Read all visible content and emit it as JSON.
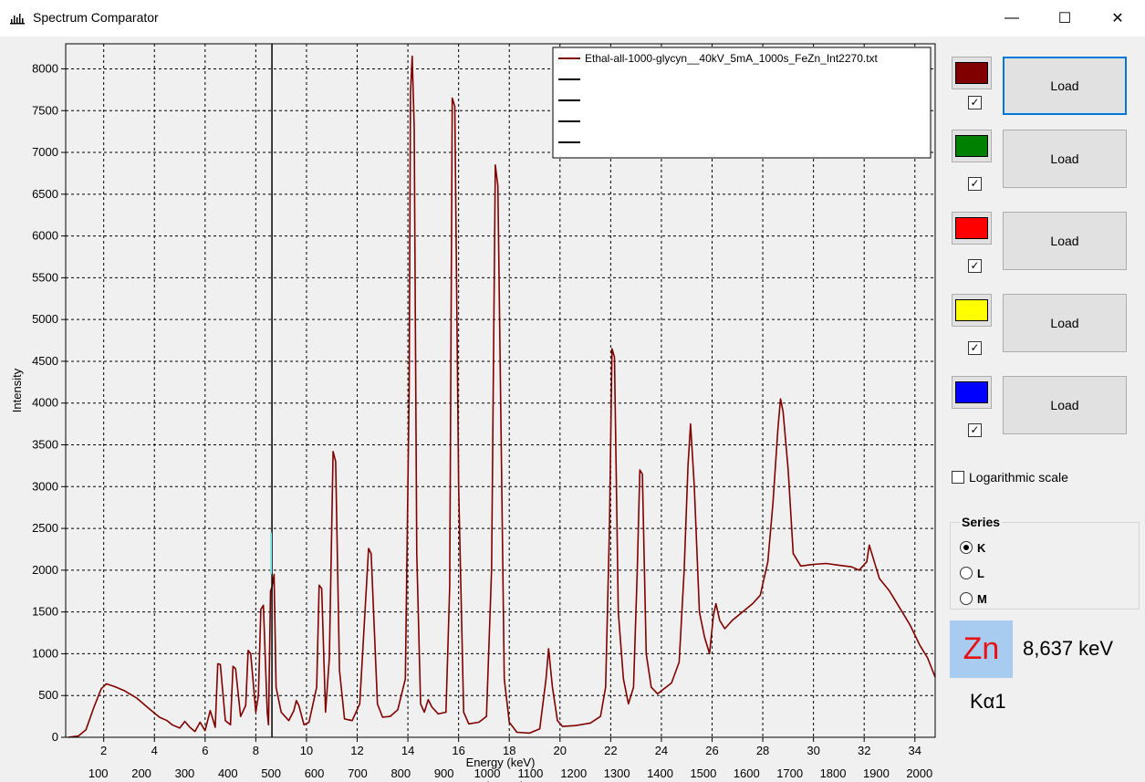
{
  "window": {
    "title": "Spectrum Comparator",
    "minimize": "—",
    "maximize": "☐",
    "close": "✕"
  },
  "chart_data": {
    "type": "line",
    "title": "",
    "xlabel": "Energy (keV)",
    "x2label": "Channel",
    "ylabel": "Intensity",
    "xlim": [
      0.5,
      34.8
    ],
    "ylim": [
      0,
      8300
    ],
    "grid": true,
    "x_ticks": [
      2,
      4,
      6,
      8,
      10,
      12,
      14,
      16,
      18,
      20,
      22,
      24,
      26,
      28,
      30,
      32,
      34
    ],
    "channel_ticks": [
      100,
      200,
      300,
      400,
      500,
      600,
      700,
      800,
      900,
      1000,
      1100,
      1200,
      1300,
      1400,
      1500,
      1600,
      1700,
      1800,
      1900,
      2000
    ],
    "y_ticks": [
      0,
      500,
      1000,
      1500,
      2000,
      2500,
      3000,
      3500,
      4000,
      4500,
      5000,
      5500,
      6000,
      6500,
      7000,
      7500,
      8000
    ],
    "cursor_energy": 8.637,
    "legend_position": "top-right",
    "series": [
      {
        "name": "Ethal-all-1000-glycyn__40kV_5mA_1000s_FeZn_Int2270.txt",
        "color": "#800000",
        "points": [
          [
            0.6,
            0
          ],
          [
            1.0,
            15
          ],
          [
            1.3,
            90
          ],
          [
            1.6,
            350
          ],
          [
            1.9,
            580
          ],
          [
            2.1,
            640
          ],
          [
            2.4,
            610
          ],
          [
            2.8,
            560
          ],
          [
            3.3,
            470
          ],
          [
            3.8,
            340
          ],
          [
            4.2,
            240
          ],
          [
            4.5,
            200
          ],
          [
            4.7,
            150
          ],
          [
            5.0,
            110
          ],
          [
            5.2,
            190
          ],
          [
            5.4,
            120
          ],
          [
            5.6,
            70
          ],
          [
            5.8,
            180
          ],
          [
            6.0,
            80
          ],
          [
            6.2,
            320
          ],
          [
            6.4,
            120
          ],
          [
            6.5,
            880
          ],
          [
            6.6,
            870
          ],
          [
            6.8,
            200
          ],
          [
            7.0,
            150
          ],
          [
            7.1,
            850
          ],
          [
            7.2,
            820
          ],
          [
            7.4,
            250
          ],
          [
            7.6,
            380
          ],
          [
            7.7,
            1040
          ],
          [
            7.8,
            1000
          ],
          [
            8.0,
            300
          ],
          [
            8.1,
            500
          ],
          [
            8.2,
            1530
          ],
          [
            8.3,
            1580
          ],
          [
            8.45,
            300
          ],
          [
            8.5,
            150
          ],
          [
            8.58,
            1750
          ],
          [
            8.64,
            1800
          ],
          [
            8.72,
            1950
          ],
          [
            8.8,
            600
          ],
          [
            9.0,
            300
          ],
          [
            9.3,
            200
          ],
          [
            9.5,
            320
          ],
          [
            9.6,
            440
          ],
          [
            9.7,
            380
          ],
          [
            9.9,
            150
          ],
          [
            10.1,
            180
          ],
          [
            10.4,
            600
          ],
          [
            10.5,
            1820
          ],
          [
            10.6,
            1780
          ],
          [
            10.75,
            300
          ],
          [
            10.9,
            950
          ],
          [
            11.05,
            3420
          ],
          [
            11.15,
            3300
          ],
          [
            11.3,
            800
          ],
          [
            11.5,
            220
          ],
          [
            11.8,
            200
          ],
          [
            12.1,
            400
          ],
          [
            12.45,
            2260
          ],
          [
            12.55,
            2200
          ],
          [
            12.8,
            400
          ],
          [
            13.0,
            240
          ],
          [
            13.3,
            250
          ],
          [
            13.6,
            330
          ],
          [
            13.9,
            700
          ],
          [
            14.05,
            4200
          ],
          [
            14.1,
            7700
          ],
          [
            14.17,
            8150
          ],
          [
            14.25,
            7300
          ],
          [
            14.35,
            2200
          ],
          [
            14.5,
            400
          ],
          [
            14.65,
            300
          ],
          [
            14.8,
            450
          ],
          [
            14.95,
            360
          ],
          [
            15.2,
            280
          ],
          [
            15.5,
            300
          ],
          [
            15.65,
            1800
          ],
          [
            15.75,
            7650
          ],
          [
            15.85,
            7550
          ],
          [
            16.0,
            3000
          ],
          [
            16.2,
            300
          ],
          [
            16.4,
            160
          ],
          [
            16.8,
            180
          ],
          [
            17.1,
            250
          ],
          [
            17.3,
            2000
          ],
          [
            17.45,
            6850
          ],
          [
            17.55,
            6600
          ],
          [
            17.8,
            700
          ],
          [
            18.0,
            180
          ],
          [
            18.3,
            60
          ],
          [
            18.8,
            50
          ],
          [
            19.2,
            100
          ],
          [
            19.45,
            700
          ],
          [
            19.55,
            1060
          ],
          [
            19.7,
            600
          ],
          [
            19.9,
            200
          ],
          [
            20.1,
            130
          ],
          [
            20.6,
            140
          ],
          [
            21.2,
            170
          ],
          [
            21.6,
            250
          ],
          [
            21.8,
            600
          ],
          [
            21.95,
            2500
          ],
          [
            22.05,
            4650
          ],
          [
            22.15,
            4550
          ],
          [
            22.3,
            1500
          ],
          [
            22.5,
            700
          ],
          [
            22.7,
            400
          ],
          [
            22.9,
            600
          ],
          [
            23.05,
            2000
          ],
          [
            23.15,
            3200
          ],
          [
            23.25,
            3150
          ],
          [
            23.4,
            1000
          ],
          [
            23.6,
            600
          ],
          [
            23.85,
            520
          ],
          [
            24.1,
            580
          ],
          [
            24.4,
            650
          ],
          [
            24.7,
            900
          ],
          [
            24.9,
            2000
          ],
          [
            25.05,
            3250
          ],
          [
            25.15,
            3750
          ],
          [
            25.3,
            3000
          ],
          [
            25.5,
            1500
          ],
          [
            25.7,
            1200
          ],
          [
            25.9,
            1000
          ],
          [
            26.05,
            1450
          ],
          [
            26.15,
            1600
          ],
          [
            26.3,
            1400
          ],
          [
            26.5,
            1300
          ],
          [
            26.8,
            1400
          ],
          [
            27.2,
            1500
          ],
          [
            27.6,
            1600
          ],
          [
            27.9,
            1700
          ],
          [
            28.2,
            2100
          ],
          [
            28.4,
            2800
          ],
          [
            28.6,
            3700
          ],
          [
            28.7,
            4050
          ],
          [
            28.8,
            3900
          ],
          [
            29.0,
            3200
          ],
          [
            29.2,
            2200
          ],
          [
            29.5,
            2050
          ],
          [
            30,
            2070
          ],
          [
            30.5,
            2080
          ],
          [
            31,
            2060
          ],
          [
            31.5,
            2040
          ],
          [
            31.8,
            2000
          ],
          [
            32.1,
            2100
          ],
          [
            32.2,
            2300
          ],
          [
            32.4,
            2100
          ],
          [
            32.6,
            1900
          ],
          [
            33.0,
            1750
          ],
          [
            33.4,
            1550
          ],
          [
            33.8,
            1350
          ],
          [
            34.2,
            1100
          ],
          [
            34.5,
            950
          ],
          [
            34.8,
            720
          ]
        ]
      }
    ],
    "legend_entries": [
      {
        "label": "Ethal-all-1000-glycyn__40kV_5mA_1000s_FeZn_Int2270.txt",
        "color": "#800000"
      },
      {
        "label": "",
        "color": "#000000"
      },
      {
        "label": "",
        "color": "#000000"
      },
      {
        "label": "",
        "color": "#000000"
      },
      {
        "label": "",
        "color": "#000000"
      }
    ]
  },
  "panel": {
    "slots": [
      {
        "color": "#800000",
        "checked": "✓",
        "load_label": "Load"
      },
      {
        "color": "#008000",
        "checked": "✓",
        "load_label": "Load"
      },
      {
        "color": "#ff0000",
        "checked": "✓",
        "load_label": "Load"
      },
      {
        "color": "#ffff00",
        "checked": "✓",
        "load_label": "Load"
      },
      {
        "color": "#0000ff",
        "checked": "✓",
        "load_label": "Load"
      }
    ],
    "log_scale_label": "Logarithmic scale",
    "series_group_title": "Series",
    "series_options": [
      "K",
      "L",
      "M"
    ],
    "selected_series": "K",
    "element_symbol": "Zn",
    "element_energy": "8,637 keV",
    "element_line": "Kα1"
  }
}
